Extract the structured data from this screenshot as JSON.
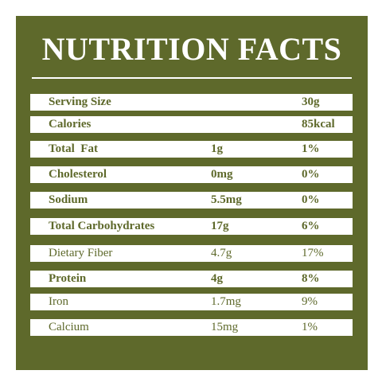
{
  "title": "NUTRITION FACTS",
  "rows": [
    {
      "label": "Serving Size",
      "amount": "",
      "percent": "30g"
    },
    {
      "label": "Calories",
      "amount": "",
      "percent": "85kcal"
    },
    {
      "label": "Total  Fat",
      "amount": "1g",
      "percent": "1%"
    },
    {
      "label": "Cholesterol",
      "amount": "0mg",
      "percent": "0%"
    },
    {
      "label": "Sodium",
      "amount": "5.5mg",
      "percent": "0%"
    },
    {
      "label": "Total Carbohydrates",
      "amount": "17g",
      "percent": "6%"
    },
    {
      "label": "Dietary Fiber",
      "amount": "4.7g",
      "percent": "17%"
    },
    {
      "label": "Protein",
      "amount": "4g",
      "percent": "8%"
    },
    {
      "label": "Iron",
      "amount": "1.7mg",
      "percent": "9%"
    },
    {
      "label": "Calcium",
      "amount": "15mg",
      "percent": "1%"
    }
  ],
  "colors": {
    "background": "#5e692b",
    "row_background": "#ffffff",
    "text": "#5e692b"
  }
}
